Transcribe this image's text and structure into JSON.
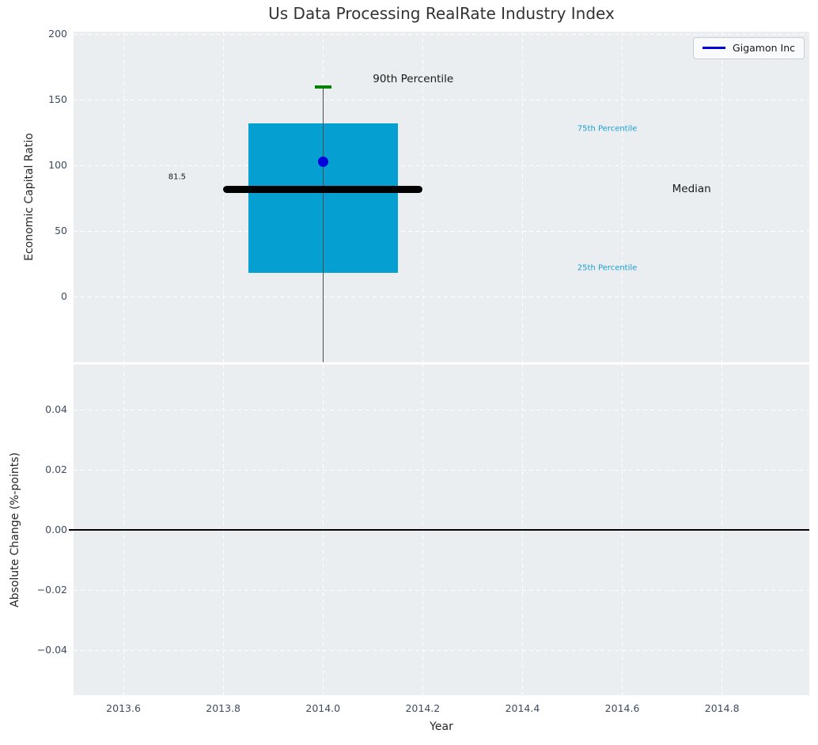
{
  "title": "Us Data Processing RealRate Industry Index",
  "legend": {
    "entries": [
      {
        "label": "Gigamon Inc",
        "color": "#0000dd"
      }
    ]
  },
  "colors": {
    "figure_bg": "#ffffff",
    "plot_bg": "#eaeef0",
    "grid": "#ffffff",
    "box_fill": "#069fd2",
    "whisker": "#4d4d4d",
    "p90_cap": "#008000",
    "median_line": "#000000",
    "company_dot": "#0000dd",
    "tick_label": "#3d4c63",
    "axis_label": "#262626",
    "title_color": "#333333",
    "percentile_label": "#189ed6",
    "zero_line": "#000000"
  },
  "x_axis": {
    "label": "Year",
    "lim": [
      2013.5,
      2014.975
    ],
    "ticks": [
      {
        "v": 2013.6,
        "label": "2013.6"
      },
      {
        "v": 2013.8,
        "label": "2013.8"
      },
      {
        "v": 2014.0,
        "label": "2014.0"
      },
      {
        "v": 2014.2,
        "label": "2014.2"
      },
      {
        "v": 2014.4,
        "label": "2014.4"
      },
      {
        "v": 2014.6,
        "label": "2014.6"
      },
      {
        "v": 2014.8,
        "label": "2014.8"
      }
    ]
  },
  "chart_data": [
    {
      "type": "box",
      "name": "economic-capital-ratio-panel",
      "ylabel": "Economic Capital Ratio",
      "ylim": [
        -50,
        202
      ],
      "yticks": [
        {
          "v": 0,
          "label": "0"
        },
        {
          "v": 50,
          "label": "50"
        },
        {
          "v": 100,
          "label": "100"
        },
        {
          "v": 150,
          "label": "150"
        },
        {
          "v": 200,
          "label": "200"
        }
      ],
      "grid": true,
      "box": {
        "x_center": 2014,
        "x_span": [
          2013.85,
          2014.15
        ],
        "p90": 160,
        "p75": 132,
        "median": 81.5,
        "p25": 18,
        "median_x_span": [
          2013.8,
          2014.2
        ],
        "median_label": "81.5",
        "whisker_extends_to_axis_bottom": true
      },
      "series": [
        {
          "name": "Gigamon Inc",
          "color": "#0000dd",
          "points": [
            {
              "x": 2014,
              "y": 103
            }
          ]
        }
      ],
      "annotations": [
        {
          "text": "90th Percentile",
          "x": 2014.1,
          "y": 166,
          "color": "#1a1a1a",
          "font_size": 13.5
        },
        {
          "text": "75th Percentile",
          "x": 2014.51,
          "y": 128,
          "color": "#189ed6",
          "font_size": 10
        },
        {
          "text": "Median",
          "x": 2014.7,
          "y": 82,
          "color": "#1a1a1a",
          "font_size": 13.5
        },
        {
          "text": "25th Percentile",
          "x": 2014.51,
          "y": 22,
          "color": "#189ed6",
          "font_size": 10
        },
        {
          "text": "81.5",
          "x": 2013.69,
          "y": 91,
          "color": "#1a1a1a",
          "font_size": 10
        }
      ]
    },
    {
      "type": "line",
      "name": "absolute-change-panel",
      "ylabel": "Absolute Change (%-points)",
      "ylim": [
        -0.055,
        0.055
      ],
      "yticks": [
        {
          "v": 0.04,
          "label": "0.04"
        },
        {
          "v": 0.02,
          "label": "0.02"
        },
        {
          "v": 0.0,
          "label": "0.00"
        },
        {
          "v": -0.02,
          "label": "−0.02"
        },
        {
          "v": -0.04,
          "label": "−0.04"
        }
      ],
      "grid": true,
      "zero_line": 0.0,
      "series": []
    }
  ]
}
